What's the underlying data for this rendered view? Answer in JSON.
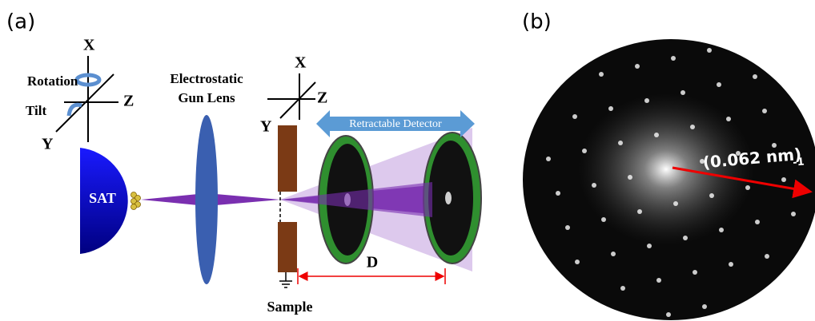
{
  "panel_a": {
    "label": "(a)",
    "tip_axes": {
      "x": "X",
      "z": "Z",
      "y": "Y",
      "rotation": "Rotation",
      "tilt": "Tilt"
    },
    "source": "SAT",
    "lens": [
      "Electrostatic",
      "Gun Lens"
    ],
    "sample_axes": {
      "x": "X",
      "z": "Z",
      "y": "Y"
    },
    "detector": "Retractable Detector",
    "distance": "D",
    "sample": "Sample"
  },
  "panel_b": {
    "label": "(b)",
    "scale_label": "(0.062 nm)",
    "scale_exponent": "-1"
  }
}
